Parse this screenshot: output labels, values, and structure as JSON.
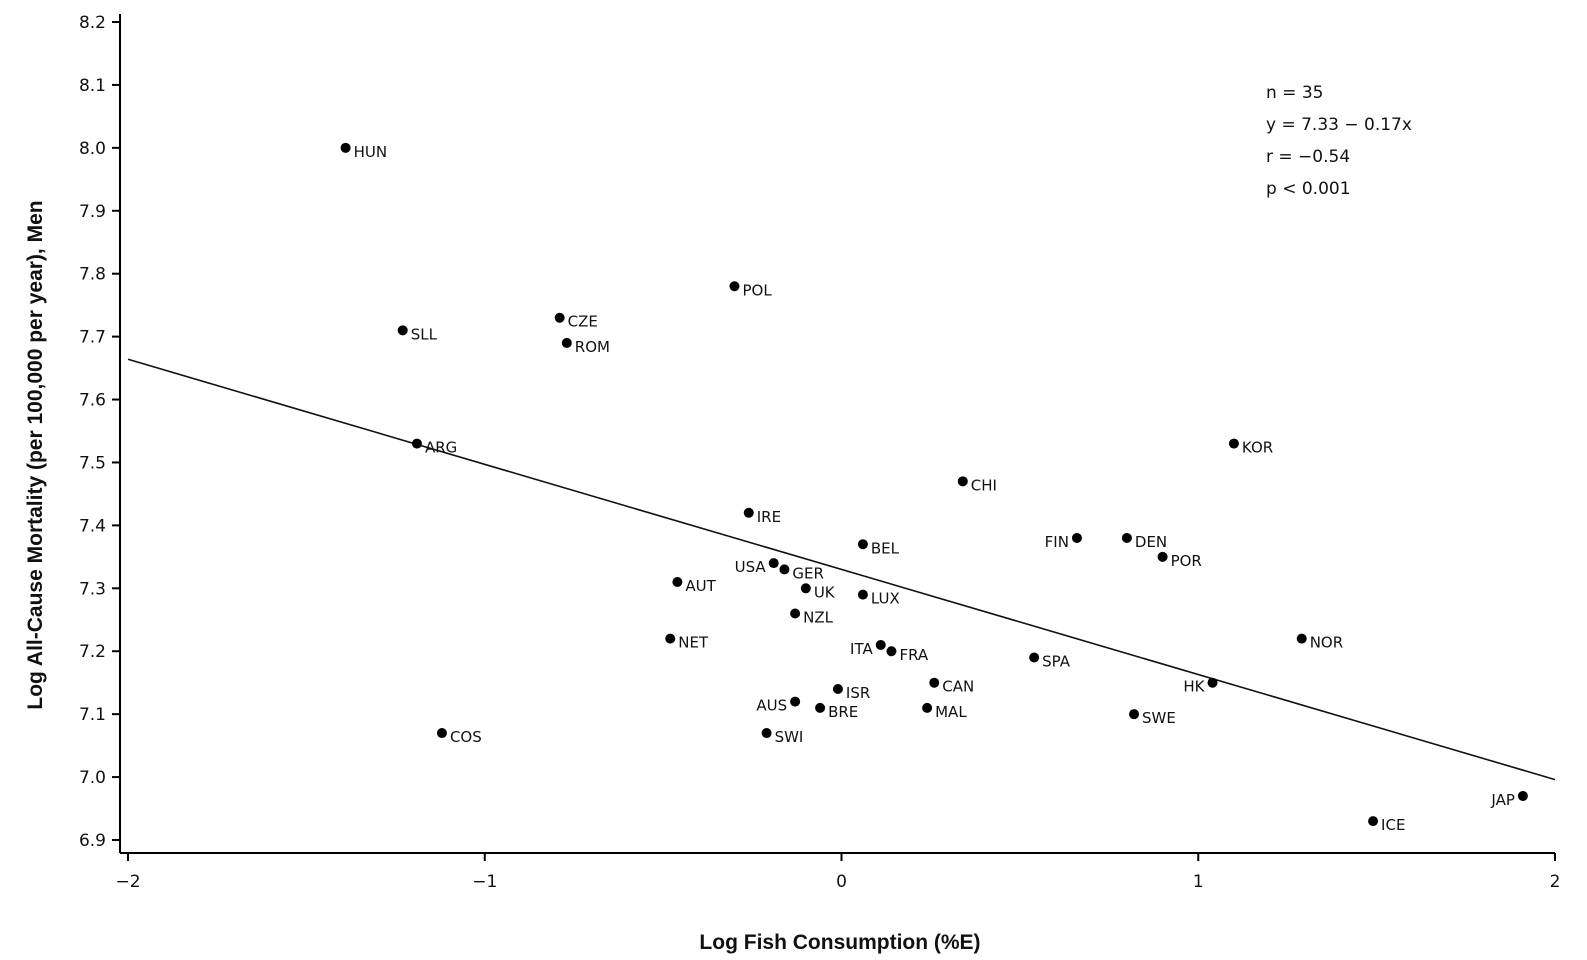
{
  "chart_data": {
    "type": "scatter",
    "xlabel": "Log Fish Consumption (%E)",
    "ylabel": "Log All-Cause Mortality (per 100,000 per year), Men",
    "xlim": [
      -2,
      2
    ],
    "ylim": [
      6.9,
      8.2
    ],
    "x_ticks": [
      {
        "value": -2,
        "label": "−2"
      },
      {
        "value": -1,
        "label": "−1"
      },
      {
        "value": 0,
        "label": "0"
      },
      {
        "value": 1,
        "label": "1"
      },
      {
        "value": 2,
        "label": "2"
      }
    ],
    "y_ticks": [
      {
        "value": 6.9,
        "label": "6.9"
      },
      {
        "value": 7.0,
        "label": "7.0"
      },
      {
        "value": 7.1,
        "label": "7.1"
      },
      {
        "value": 7.2,
        "label": "7.2"
      },
      {
        "value": 7.3,
        "label": "7.3"
      },
      {
        "value": 7.4,
        "label": "7.4"
      },
      {
        "value": 7.5,
        "label": "7.5"
      },
      {
        "value": 7.6,
        "label": "7.6"
      },
      {
        "value": 7.7,
        "label": "7.7"
      },
      {
        "value": 7.8,
        "label": "7.8"
      },
      {
        "value": 7.9,
        "label": "7.9"
      },
      {
        "value": 8.0,
        "label": "8.0"
      },
      {
        "value": 8.1,
        "label": "8.1"
      },
      {
        "value": 8.2,
        "label": "8.2"
      }
    ],
    "grid": false,
    "points": [
      {
        "label": "HUN",
        "x": -1.39,
        "y": 8.0,
        "label_side": "right"
      },
      {
        "label": "POL",
        "x": -0.3,
        "y": 7.78,
        "label_side": "right"
      },
      {
        "label": "CZE",
        "x": -0.79,
        "y": 7.73,
        "label_side": "right"
      },
      {
        "label": "SLL",
        "x": -1.23,
        "y": 7.71,
        "label_side": "right"
      },
      {
        "label": "ROM",
        "x": -0.77,
        "y": 7.69,
        "label_side": "right"
      },
      {
        "label": "ARG",
        "x": -1.19,
        "y": 7.53,
        "label_side": "right"
      },
      {
        "label": "KOR",
        "x": 1.1,
        "y": 7.53,
        "label_side": "right"
      },
      {
        "label": "CHI",
        "x": 0.34,
        "y": 7.47,
        "label_side": "right"
      },
      {
        "label": "IRE",
        "x": -0.26,
        "y": 7.42,
        "label_side": "right"
      },
      {
        "label": "DEN",
        "x": 0.8,
        "y": 7.38,
        "label_side": "right"
      },
      {
        "label": "FIN",
        "x": 0.66,
        "y": 7.38,
        "label_side": "left"
      },
      {
        "label": "BEL",
        "x": 0.06,
        "y": 7.37,
        "label_side": "right"
      },
      {
        "label": "POR",
        "x": 0.9,
        "y": 7.35,
        "label_side": "right"
      },
      {
        "label": "USA",
        "x": -0.19,
        "y": 7.34,
        "label_side": "left"
      },
      {
        "label": "GER",
        "x": -0.16,
        "y": 7.33,
        "label_side": "right"
      },
      {
        "label": "AUT",
        "x": -0.46,
        "y": 7.31,
        "label_side": "right"
      },
      {
        "label": "UK",
        "x": -0.1,
        "y": 7.3,
        "label_side": "right"
      },
      {
        "label": "LUX",
        "x": 0.06,
        "y": 7.29,
        "label_side": "right"
      },
      {
        "label": "NZL",
        "x": -0.13,
        "y": 7.26,
        "label_side": "right"
      },
      {
        "label": "NOR",
        "x": 1.29,
        "y": 7.22,
        "label_side": "right"
      },
      {
        "label": "NET",
        "x": -0.48,
        "y": 7.22,
        "label_side": "right"
      },
      {
        "label": "ITA",
        "x": 0.11,
        "y": 7.21,
        "label_side": "left"
      },
      {
        "label": "FRA",
        "x": 0.14,
        "y": 7.2,
        "label_side": "right"
      },
      {
        "label": "SPA",
        "x": 0.54,
        "y": 7.19,
        "label_side": "right"
      },
      {
        "label": "HK",
        "x": 1.04,
        "y": 7.15,
        "label_side": "left"
      },
      {
        "label": "CAN",
        "x": 0.26,
        "y": 7.15,
        "label_side": "right"
      },
      {
        "label": "ISR",
        "x": -0.01,
        "y": 7.14,
        "label_side": "right"
      },
      {
        "label": "AUS",
        "x": -0.13,
        "y": 7.12,
        "label_side": "left"
      },
      {
        "label": "BRE",
        "x": -0.06,
        "y": 7.11,
        "label_side": "right"
      },
      {
        "label": "MAL",
        "x": 0.24,
        "y": 7.11,
        "label_side": "right"
      },
      {
        "label": "SWE",
        "x": 0.82,
        "y": 7.1,
        "label_side": "right"
      },
      {
        "label": "SWI",
        "x": -0.21,
        "y": 7.07,
        "label_side": "right"
      },
      {
        "label": "COS",
        "x": -1.12,
        "y": 7.07,
        "label_side": "right"
      },
      {
        "label": "JAP",
        "x": 1.91,
        "y": 6.97,
        "label_side": "left"
      },
      {
        "label": "ICE",
        "x": 1.49,
        "y": 6.93,
        "label_side": "right"
      }
    ],
    "regression": {
      "intercept": 7.33,
      "slope": -0.167,
      "x_range": [
        -2,
        2
      ]
    },
    "annotations": [
      "n = 35",
      "y = 7.33 − 0.17x",
      "r = −0.54",
      "p < 0.001"
    ]
  }
}
